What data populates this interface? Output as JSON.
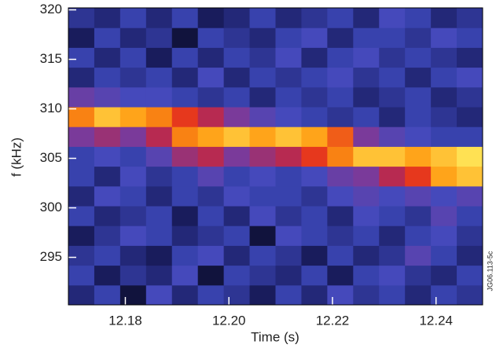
{
  "chart_data": {
    "type": "heatmap",
    "xlabel": "Time (s)",
    "ylabel": "f (kHz)",
    "annotation": "JG06.113-5c",
    "x_bins": [
      12.169,
      12.174,
      12.179,
      12.184,
      12.189,
      12.194,
      12.199,
      12.204,
      12.209,
      12.214,
      12.219,
      12.224,
      12.229,
      12.234,
      12.239,
      12.244,
      12.249
    ],
    "y_bins": [
      290.2,
      292.2,
      294.2,
      296.2,
      298.2,
      300.2,
      302.2,
      304.2,
      306.2,
      308.2,
      310.2,
      312.2,
      314.2,
      316.2,
      318.2,
      320.2
    ],
    "z": [
      [
        0.2,
        0.3,
        0.1,
        0.35,
        0.2,
        0.3,
        0.25,
        0.15,
        0.3,
        0.2,
        0.35,
        0.25,
        0.3,
        0.2,
        0.3,
        0.25
      ],
      [
        0.3,
        0.15,
        0.25,
        0.2,
        0.35,
        0.1,
        0.3,
        0.25,
        0.2,
        0.3,
        0.15,
        0.3,
        0.35,
        0.25,
        0.2,
        0.3
      ],
      [
        0.25,
        0.3,
        0.2,
        0.15,
        0.3,
        0.35,
        0.2,
        0.3,
        0.25,
        0.15,
        0.3,
        0.2,
        0.25,
        0.4,
        0.3,
        0.2
      ],
      [
        0.15,
        0.25,
        0.35,
        0.3,
        0.2,
        0.25,
        0.3,
        0.1,
        0.35,
        0.3,
        0.25,
        0.3,
        0.2,
        0.3,
        0.35,
        0.25
      ],
      [
        0.3,
        0.2,
        0.25,
        0.3,
        0.15,
        0.3,
        0.2,
        0.35,
        0.25,
        0.3,
        0.2,
        0.35,
        0.3,
        0.25,
        0.4,
        0.3
      ],
      [
        0.2,
        0.35,
        0.3,
        0.2,
        0.3,
        0.25,
        0.35,
        0.3,
        0.3,
        0.25,
        0.35,
        0.4,
        0.35,
        0.4,
        0.35,
        0.4
      ],
      [
        0.3,
        0.2,
        0.35,
        0.25,
        0.3,
        0.4,
        0.3,
        0.35,
        0.3,
        0.35,
        0.45,
        0.5,
        0.6,
        0.7,
        0.85,
        0.9
      ],
      [
        0.3,
        0.35,
        0.3,
        0.4,
        0.55,
        0.6,
        0.5,
        0.55,
        0.6,
        0.7,
        0.8,
        0.9,
        0.9,
        0.85,
        0.9,
        0.95
      ],
      [
        0.5,
        0.55,
        0.5,
        0.6,
        0.8,
        0.85,
        0.9,
        0.85,
        0.9,
        0.85,
        0.75,
        0.5,
        0.4,
        0.35,
        0.3,
        0.3
      ],
      [
        0.8,
        0.9,
        0.85,
        0.8,
        0.7,
        0.6,
        0.5,
        0.4,
        0.35,
        0.3,
        0.25,
        0.3,
        0.2,
        0.3,
        0.25,
        0.2
      ],
      [
        0.45,
        0.4,
        0.35,
        0.35,
        0.3,
        0.25,
        0.3,
        0.2,
        0.3,
        0.25,
        0.3,
        0.2,
        0.25,
        0.3,
        0.2,
        0.25
      ],
      [
        0.2,
        0.3,
        0.25,
        0.3,
        0.2,
        0.35,
        0.2,
        0.3,
        0.25,
        0.3,
        0.35,
        0.25,
        0.3,
        0.2,
        0.3,
        0.35
      ],
      [
        0.3,
        0.2,
        0.3,
        0.15,
        0.3,
        0.2,
        0.3,
        0.25,
        0.35,
        0.2,
        0.3,
        0.35,
        0.25,
        0.3,
        0.25,
        0.2
      ],
      [
        0.15,
        0.3,
        0.2,
        0.25,
        0.1,
        0.3,
        0.25,
        0.2,
        0.3,
        0.35,
        0.2,
        0.3,
        0.3,
        0.25,
        0.35,
        0.3
      ],
      [
        0.25,
        0.2,
        0.3,
        0.2,
        0.3,
        0.15,
        0.2,
        0.3,
        0.2,
        0.25,
        0.3,
        0.2,
        0.35,
        0.3,
        0.2,
        0.25
      ]
    ],
    "colormap": [
      "#000000",
      "#1c1f66",
      "#3f4bbf",
      "#7a3a9a",
      "#e02020",
      "#ff9a10",
      "#ffff70"
    ],
    "xlim": [
      12.169,
      12.249
    ],
    "ylim": [
      290.2,
      320.2
    ],
    "xticks": [
      {
        "value": 12.18,
        "label": "12.18"
      },
      {
        "value": 12.2,
        "label": "12.20"
      },
      {
        "value": 12.22,
        "label": "12.22"
      },
      {
        "value": 12.24,
        "label": "12.24"
      }
    ],
    "yticks": [
      295,
      300,
      305,
      310,
      315,
      320
    ]
  }
}
